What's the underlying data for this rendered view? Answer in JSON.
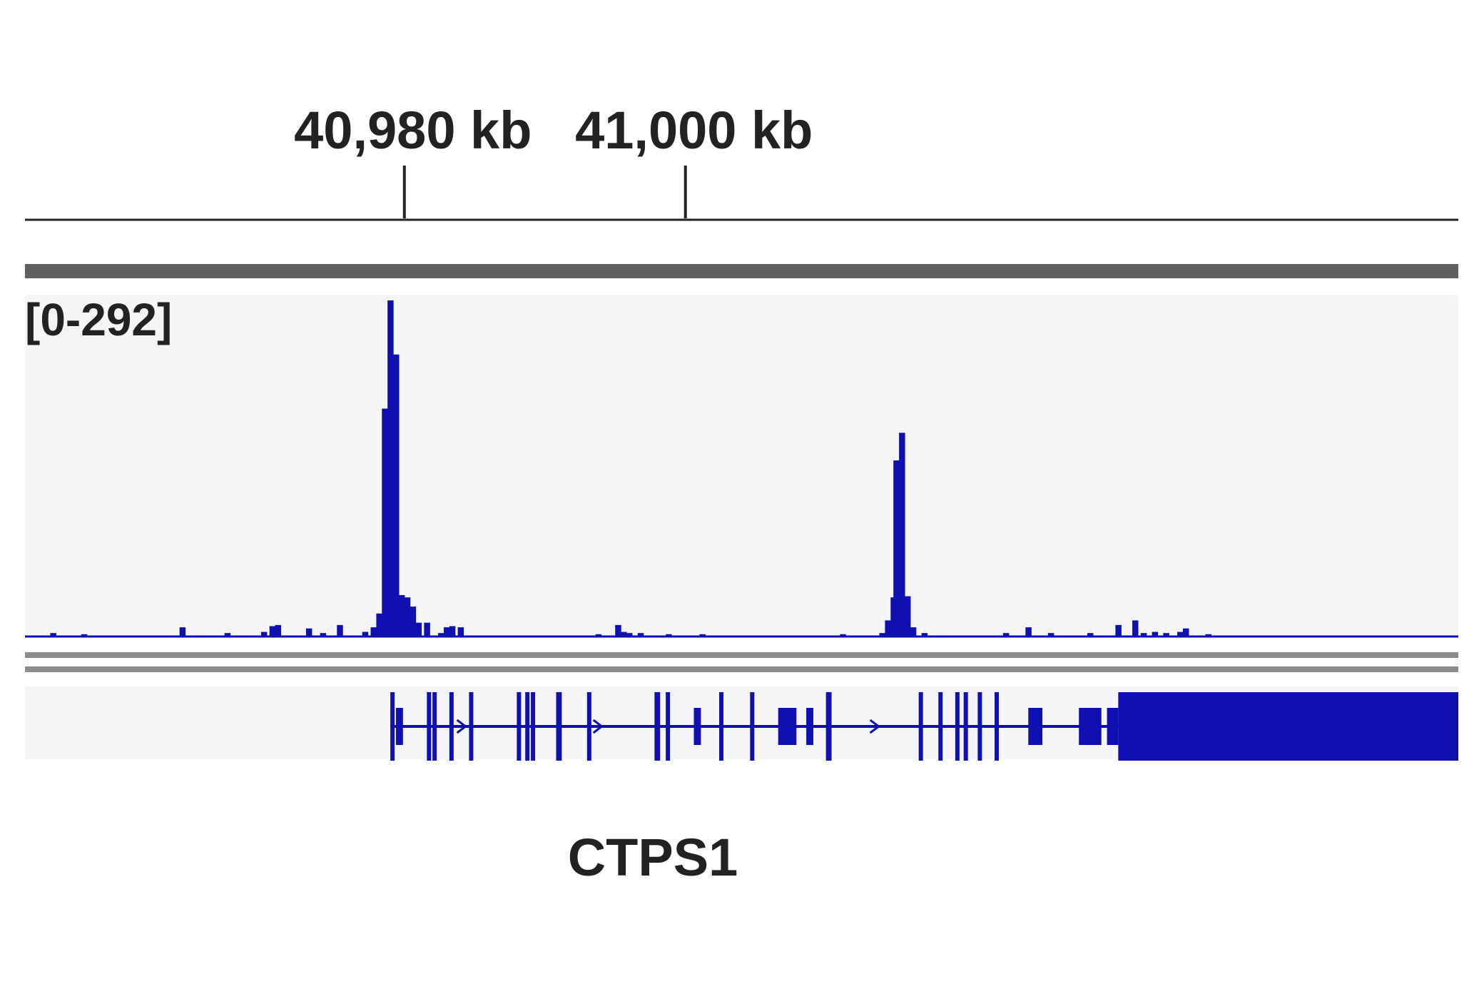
{
  "colors": {
    "signal": "#1010b0",
    "gene": "#1010b0",
    "track_bg": "#f5f5f7",
    "header_bar": "#5f5f61",
    "separator": "#8c8c8e",
    "ruler": "#222222"
  },
  "chart_data": {
    "type": "bar",
    "xlabel": "",
    "ylabel": "",
    "xlim_kb": [
      40953,
      41055
    ],
    "ruler_ticks": [
      {
        "position_kb": 40980,
        "label": "40,980 kb"
      },
      {
        "position_kb": 41000,
        "label": "41,000 kb"
      }
    ],
    "track": {
      "data_range_label": "[0-292]",
      "ylim": [
        0,
        292
      ],
      "bins_kb": [
        [
          40953.2,
          0
        ],
        [
          40954.8,
          3
        ],
        [
          40957.0,
          2
        ],
        [
          40964.0,
          8
        ],
        [
          40967.2,
          3
        ],
        [
          40969.8,
          4
        ],
        [
          40970.4,
          9
        ],
        [
          40970.8,
          10
        ],
        [
          40973.0,
          7
        ],
        [
          40974.0,
          3
        ],
        [
          40975.2,
          10
        ],
        [
          40977.0,
          4
        ],
        [
          40977.6,
          8
        ],
        [
          40978.0,
          20
        ],
        [
          40978.4,
          198
        ],
        [
          40978.8,
          292
        ],
        [
          40979.2,
          245
        ],
        [
          40979.6,
          36
        ],
        [
          40980.0,
          34
        ],
        [
          40980.4,
          26
        ],
        [
          40980.8,
          12
        ],
        [
          40981.4,
          12
        ],
        [
          40982.4,
          3
        ],
        [
          40982.8,
          8
        ],
        [
          40983.2,
          9
        ],
        [
          40983.8,
          8
        ],
        [
          40993.6,
          2
        ],
        [
          40995.0,
          10
        ],
        [
          40995.4,
          4
        ],
        [
          40995.8,
          3
        ],
        [
          40996.6,
          3
        ],
        [
          40998.6,
          2
        ],
        [
          41001.0,
          2
        ],
        [
          41011.0,
          2
        ],
        [
          41013.8,
          3
        ],
        [
          41014.2,
          14
        ],
        [
          41014.6,
          34
        ],
        [
          41014.8,
          153
        ],
        [
          41015.2,
          177
        ],
        [
          41015.6,
          35
        ],
        [
          41016.0,
          8
        ],
        [
          41016.8,
          3
        ],
        [
          41022.6,
          3
        ],
        [
          41024.2,
          8
        ],
        [
          41025.8,
          3
        ],
        [
          41028.6,
          3
        ],
        [
          41030.6,
          10
        ],
        [
          41031.8,
          14
        ],
        [
          41032.4,
          3
        ],
        [
          41033.2,
          4
        ],
        [
          41034.0,
          3
        ],
        [
          41035.0,
          4
        ],
        [
          41035.4,
          7
        ],
        [
          41037.0,
          2
        ]
      ]
    },
    "gene": {
      "name": "CTPS1",
      "strand": "+",
      "start_kb": 40979.0,
      "end_kb": 41055,
      "exons_kb": [
        [
          40979.0,
          40979.1
        ],
        [
          40979.4,
          40979.9
        ],
        [
          40981.6,
          40981.8
        ],
        [
          40982.0,
          40982.3
        ],
        [
          40983.2,
          40983.4
        ],
        [
          40984.6,
          40984.9
        ],
        [
          40988.0,
          40988.3
        ],
        [
          40988.6,
          40988.8
        ],
        [
          40989.0,
          40989.3
        ],
        [
          40990.8,
          40991.2
        ],
        [
          40993.0,
          40993.3
        ],
        [
          40997.8,
          40998.2
        ],
        [
          40998.6,
          40998.9
        ],
        [
          41000.6,
          41001.1
        ],
        [
          41002.4,
          41002.7
        ],
        [
          41004.6,
          41004.8
        ],
        [
          41006.6,
          41007.9
        ],
        [
          41008.6,
          41009.1
        ],
        [
          41010.0,
          41010.4
        ],
        [
          41016.6,
          41016.9
        ],
        [
          41018.0,
          41018.3
        ],
        [
          41019.2,
          41019.5
        ],
        [
          41019.8,
          41020.1
        ],
        [
          41020.8,
          41021.1
        ],
        [
          41022.0,
          41022.3
        ],
        [
          41024.4,
          41025.4
        ],
        [
          41028.0,
          41029.6
        ],
        [
          41030.0,
          41030.8
        ]
      ]
    }
  }
}
